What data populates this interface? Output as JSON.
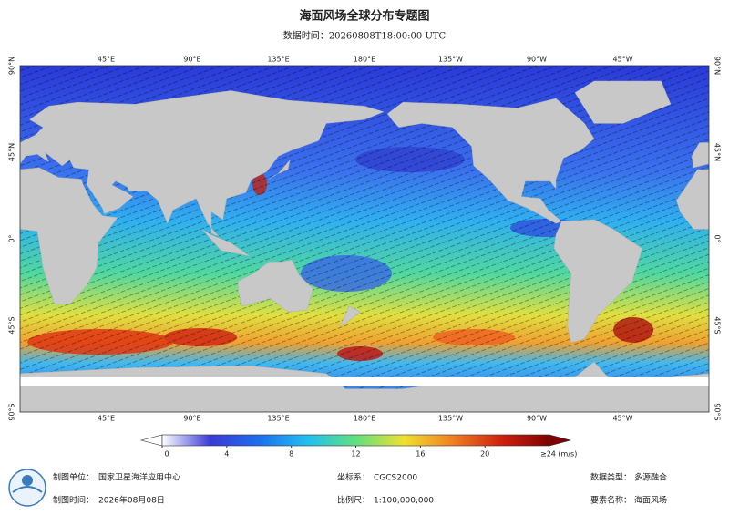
{
  "header": {
    "title": "海面风场全球分布专题图",
    "subtitle": "数据时间：20260808T18:00:00 UTC"
  },
  "map": {
    "lon_labels": [
      "45°E",
      "90°E",
      "135°E",
      "180°E",
      "135°W",
      "90°W",
      "45°W"
    ],
    "lat_labels": [
      "90°N",
      "45°N",
      "0°",
      "45°S",
      "90°S"
    ]
  },
  "colorbar": {
    "range": [
      0,
      24
    ],
    "ticks": [
      0,
      4,
      8,
      12,
      16,
      20
    ],
    "max_label": "≥24 (m/s)",
    "colors": [
      "#ffffff",
      "#3a3ad8",
      "#1e6ef0",
      "#20c0f0",
      "#60e080",
      "#f0e030",
      "#f08020",
      "#d02010",
      "#800000"
    ]
  },
  "footer": {
    "unit_label": "制图单位：",
    "unit": "国家卫星海洋应用中心",
    "crs_label": "坐标系：",
    "crs": "CGCS2000",
    "type_label": "数据类型：",
    "type": "多源融合",
    "time_label": "制图时间：",
    "time": "2026年08月08日",
    "scale_label": "比例尺：",
    "scale": "1:100,000,000",
    "element_label": "要素名称：",
    "element": "海面风场"
  }
}
